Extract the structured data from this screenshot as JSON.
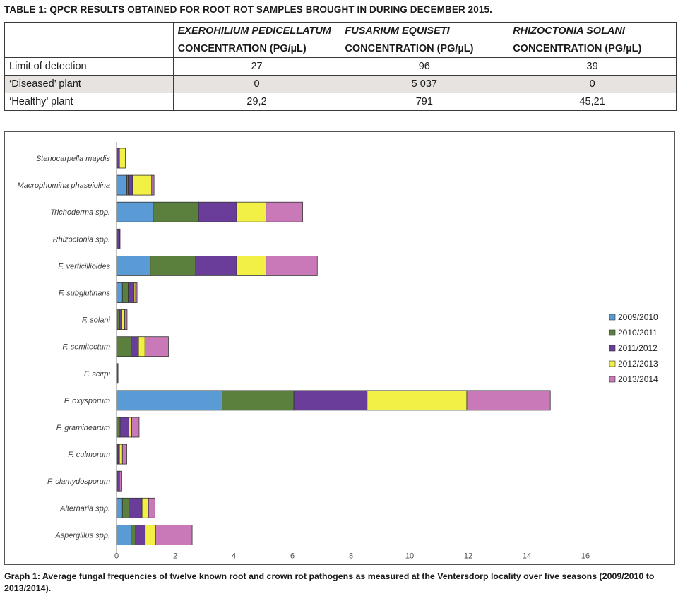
{
  "table": {
    "title": "TABLE 1: QPCR RESULTS OBTAINED FOR ROOT ROT SAMPLES BROUGHT IN DURING DECEMBER 2015.",
    "species": [
      "EXEROHILIUM PEDICELLATUM",
      "FUSARIUM EQUISETI",
      "RHIZOCTONIA SOLANI"
    ],
    "unit_label": "CONCENTRATION (PG/µL)",
    "rows": [
      {
        "label": "Limit of detection",
        "values": [
          "27",
          "96",
          "39"
        ]
      },
      {
        "label": "‘Diseased’ plant",
        "values": [
          "0",
          "5 037",
          "0"
        ]
      },
      {
        "label": "‘Healthy’ plant",
        "values": [
          "29,2",
          "791",
          "45,21"
        ]
      }
    ]
  },
  "chart_data": {
    "type": "bar",
    "orientation": "horizontal",
    "stacked": true,
    "title": "",
    "xlabel": "",
    "ylabel": "",
    "xlim": [
      0,
      16
    ],
    "xticks": [
      0,
      2,
      4,
      6,
      8,
      10,
      12,
      14,
      16
    ],
    "grid": false,
    "legend_position": "right",
    "categories": [
      "Stenocarpella maydis",
      "Macrophomina phaseiolina",
      "Trichoderma spp.",
      "Rhizoctonia spp.",
      "F. verticillioides",
      "F. subglutinans",
      "F. solani",
      "F. semitectum",
      "F. scirpi",
      "F. oxysporum",
      "F. graminearum",
      "F. culmorum",
      "F. clamydosporum",
      "Alternaria spp.",
      "Aspergillus spp."
    ],
    "series": [
      {
        "name": "2009/2010",
        "color": "#5b9bd5",
        "values": [
          0,
          0.35,
          1.25,
          0,
          1.15,
          0.2,
          0.02,
          0,
          0,
          3.6,
          0,
          0.02,
          0,
          0.2,
          0.5
        ]
      },
      {
        "name": "2010/2011",
        "color": "#5b7f3c",
        "values": [
          0,
          0.05,
          1.55,
          0,
          1.55,
          0.2,
          0.08,
          0.5,
          0,
          2.45,
          0.12,
          0.03,
          0.02,
          0.22,
          0.15
        ]
      },
      {
        "name": "2011/2012",
        "color": "#6a3d9a",
        "values": [
          0.1,
          0.15,
          1.3,
          0.1,
          1.4,
          0.2,
          0.08,
          0.25,
          0.05,
          2.5,
          0.3,
          0.05,
          0.08,
          0.45,
          0.33
        ]
      },
      {
        "name": "2012/2013",
        "color": "#f2ef45",
        "values": [
          0.2,
          0.65,
          1.0,
          0,
          1.0,
          0.05,
          0.1,
          0.22,
          0,
          3.4,
          0.1,
          0.1,
          0,
          0.22,
          0.35
        ]
      },
      {
        "name": "2013/2014",
        "color": "#c978b8",
        "values": [
          0,
          0.08,
          1.25,
          0.02,
          1.75,
          0.05,
          0.08,
          0.8,
          0,
          2.85,
          0.25,
          0.15,
          0.08,
          0.22,
          1.25
        ]
      }
    ]
  },
  "caption": "Graph 1: Average fungal frequencies of twelve known root and crown rot pathogens as measured at the Ventersdorp locality over five seasons (2009/2010 to 2013/2014)."
}
